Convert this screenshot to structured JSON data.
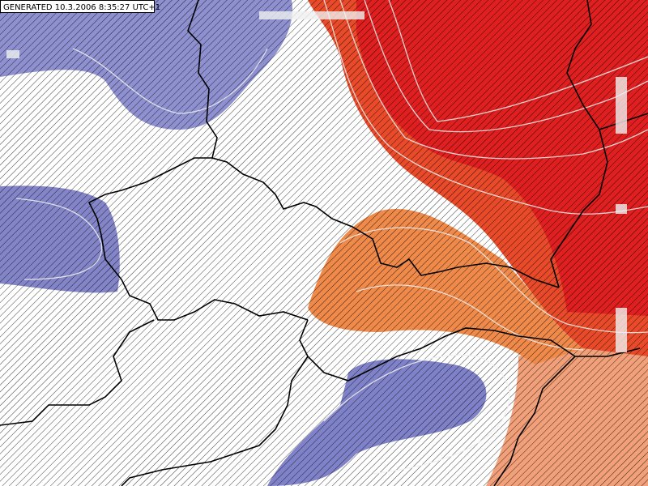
{
  "header": {
    "generated": "GENERATED 10.3.2006 8:35:27 UTC+1"
  }
}
